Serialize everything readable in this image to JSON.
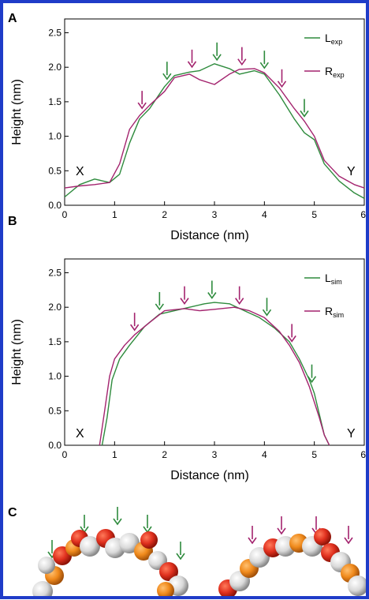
{
  "colors": {
    "border": "#1f3cc8",
    "L": "#2e8b3d",
    "R": "#a3236e",
    "axis": "#000000"
  },
  "panel_labels": [
    "A",
    "B",
    "C"
  ],
  "chart_data": [
    {
      "panel": "A",
      "type": "line",
      "xlabel": "Distance (nm)",
      "ylabel": "Height (nm)",
      "xlim": [
        0,
        6
      ],
      "ylim": [
        0,
        2.7
      ],
      "xticks": [
        "0",
        "1",
        "2",
        "3",
        "4",
        "5",
        "6"
      ],
      "yticks": [
        "0.0",
        "0.5",
        "1.0",
        "1.5",
        "2.0",
        "2.5"
      ],
      "grid": false,
      "legend_position": "top-right",
      "annotations": [
        "X",
        "Y"
      ],
      "series": [
        {
          "name": "Lexp",
          "label_main": "L",
          "label_sub": "exp",
          "color": "#2e8b3d",
          "x": [
            0,
            0.3,
            0.6,
            0.9,
            1.1,
            1.3,
            1.5,
            1.7,
            2.0,
            2.2,
            2.5,
            2.7,
            3.0,
            3.3,
            3.5,
            3.8,
            4.0,
            4.3,
            4.6,
            4.8,
            5.0,
            5.2,
            5.5,
            5.8,
            6.0
          ],
          "y": [
            0.12,
            0.3,
            0.38,
            0.33,
            0.45,
            0.9,
            1.25,
            1.4,
            1.72,
            1.88,
            1.93,
            1.95,
            2.05,
            1.98,
            1.9,
            1.95,
            1.9,
            1.6,
            1.25,
            1.05,
            0.95,
            0.6,
            0.35,
            0.18,
            0.1
          ]
        },
        {
          "name": "Rexp",
          "label_main": "R",
          "label_sub": "exp",
          "color": "#a3236e",
          "x": [
            0,
            0.3,
            0.6,
            0.9,
            1.1,
            1.3,
            1.5,
            1.7,
            2.0,
            2.2,
            2.5,
            2.7,
            3.0,
            3.3,
            3.5,
            3.8,
            4.0,
            4.3,
            4.6,
            4.8,
            5.0,
            5.2,
            5.5,
            5.8,
            6.0
          ],
          "y": [
            0.25,
            0.28,
            0.3,
            0.33,
            0.6,
            1.1,
            1.3,
            1.45,
            1.65,
            1.85,
            1.9,
            1.82,
            1.75,
            1.9,
            1.97,
            1.98,
            1.92,
            1.7,
            1.4,
            1.22,
            1.0,
            0.65,
            0.42,
            0.3,
            0.25
          ]
        }
      ],
      "arrows": [
        {
          "color": "L",
          "x": 2.05
        },
        {
          "color": "L",
          "x": 3.05
        },
        {
          "color": "L",
          "x": 4.0
        },
        {
          "color": "L",
          "x": 4.8
        },
        {
          "color": "R",
          "x": 1.55
        },
        {
          "color": "R",
          "x": 2.55
        },
        {
          "color": "R",
          "x": 3.55
        },
        {
          "color": "R",
          "x": 4.35
        }
      ]
    },
    {
      "panel": "B",
      "type": "line",
      "xlabel": "Distance (nm)",
      "ylabel": "Height (nm)",
      "xlim": [
        0,
        6
      ],
      "ylim": [
        0,
        2.7
      ],
      "xticks": [
        "0",
        "1",
        "2",
        "3",
        "4",
        "5",
        "6"
      ],
      "yticks": [
        "0.0",
        "0.5",
        "1.0",
        "1.5",
        "2.0",
        "2.5"
      ],
      "grid": false,
      "legend_position": "top-right",
      "annotations": [
        "X",
        "Y"
      ],
      "series": [
        {
          "name": "Lsim",
          "label_main": "L",
          "label_sub": "sim",
          "color": "#2e8b3d",
          "x": [
            0.75,
            0.85,
            0.95,
            1.1,
            1.3,
            1.6,
            1.9,
            2.2,
            2.5,
            2.8,
            3.0,
            3.3,
            3.6,
            3.9,
            4.2,
            4.5,
            4.7,
            4.9,
            5.0,
            5.1,
            5.2,
            5.3
          ],
          "y": [
            0.0,
            0.4,
            0.95,
            1.25,
            1.45,
            1.72,
            1.9,
            1.95,
            2.0,
            2.05,
            2.07,
            2.05,
            1.95,
            1.85,
            1.7,
            1.5,
            1.25,
            0.95,
            0.75,
            0.45,
            0.15,
            0.0
          ]
        },
        {
          "name": "Rsim",
          "label_main": "R",
          "label_sub": "sim",
          "color": "#a3236e",
          "x": [
            0.7,
            0.8,
            0.9,
            1.0,
            1.2,
            1.4,
            1.7,
            2.0,
            2.4,
            2.7,
            3.0,
            3.4,
            3.7,
            4.0,
            4.3,
            4.5,
            4.7,
            4.9,
            5.1,
            5.2,
            5.3
          ],
          "y": [
            0.0,
            0.5,
            1.0,
            1.25,
            1.45,
            1.6,
            1.78,
            1.95,
            1.98,
            1.95,
            1.97,
            2.0,
            1.95,
            1.85,
            1.65,
            1.45,
            1.2,
            0.85,
            0.4,
            0.15,
            0.0
          ]
        }
      ],
      "arrows": [
        {
          "color": "L",
          "x": 1.9
        },
        {
          "color": "L",
          "x": 2.95
        },
        {
          "color": "L",
          "x": 4.05
        },
        {
          "color": "L",
          "x": 4.95
        },
        {
          "color": "R",
          "x": 1.4
        },
        {
          "color": "R",
          "x": 2.4
        },
        {
          "color": "R",
          "x": 3.5
        },
        {
          "color": "R",
          "x": 4.55
        }
      ]
    }
  ],
  "illustration": {
    "panel": "C",
    "arrows_left": [
      "L",
      "L",
      "L",
      "L",
      "L"
    ],
    "arrows_right": [
      "R",
      "R",
      "R",
      "R"
    ]
  }
}
